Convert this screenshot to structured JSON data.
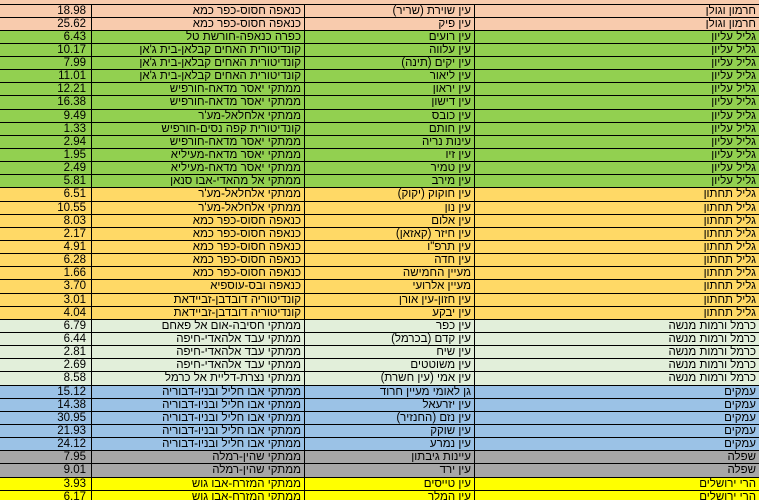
{
  "table": {
    "groups": [
      {
        "color": "#f8cbad",
        "rows": [
          [
            "חרמון וגולן",
            "עין שוירת (שריר)",
            "כנאפה חסוס-כפר כמא",
            "18.98"
          ],
          [
            "חרמון וגולן",
            "עין פיק",
            "כנאפה חסוס-כפר כמא",
            "25.62"
          ]
        ]
      },
      {
        "color": "#92d050",
        "rows": [
          [
            "גליל עליון",
            "עין רועים",
            "כפרה כנאפה-חורשת טל",
            "6.43"
          ],
          [
            "גליל עליון",
            "עין עלווה",
            "קונדיטורית האחים קבלאן-בית ג'אן",
            "10.17"
          ],
          [
            "גליל עליון",
            "עין יקים (תינה)",
            "קונדיטורית האחים קבלאן-בית ג'אן",
            "7.99"
          ],
          [
            "גליל עליון",
            "עין ליאור",
            "קונדיטורית האחים קבלאן-בית ג'אן",
            "11.01"
          ],
          [
            "גליל עליון",
            "עין יראון",
            "ממתקי יאסר מדאח-חורפיש",
            "12.21"
          ],
          [
            "גליל עליון",
            "עין דישון",
            "ממתקי יאסר מדאח-חורפיש",
            "16.38"
          ],
          [
            "גליל עליון",
            "עין כובס",
            "ממתקי אלחלאל-מע'ר",
            "9.49"
          ],
          [
            "גליל עליון",
            "עין חותם",
            "קונדיטורית קפה נסים-חורפיש",
            "1.33"
          ],
          [
            "גליל עליון",
            "עינות נריה",
            "ממתקי יאסר מדאח-חורפיש",
            "2.94"
          ],
          [
            "גליל עליון",
            "עין זיו",
            "ממתקי יאסר מדאח-מעיליא",
            "1.95"
          ],
          [
            "גליל עליון",
            "עין טמיר",
            "ממתקי יאסר מדאח-מעיליא",
            "2.49"
          ],
          [
            "גליל עליון",
            "עין מירב",
            "ממתקי אל מהאדי-אבו סנאן",
            "5.81"
          ]
        ]
      },
      {
        "color": "#ffd966",
        "rows": [
          [
            "גליל תחתון",
            "עין חוקוק (יקוק)",
            "ממתקי אלחלאל-מע'ר",
            "6.51"
          ],
          [
            "גליל תחתון",
            "עין נון",
            "ממתקי אלחלאל-מע'ר",
            "10.55"
          ],
          [
            "גליל תחתון",
            "עין אלום",
            "כנאפה חסוס-כפר כמא",
            "8.03"
          ],
          [
            "גליל תחתון",
            "עין חיזר (קאזאן)",
            "כנאפה חסוס-כפר כמא",
            "2.17"
          ],
          [
            "גליל תחתון",
            "עין תרפ\"ו",
            "כנאפה חסוס-כפר כמא",
            "4.91"
          ],
          [
            "גליל תחתון",
            "עין חדה",
            "כנאפה חסוס-כפר כמא",
            "6.28"
          ],
          [
            "גליל תחתון",
            "מעיין החמישה",
            "כנאפה חסוס-כפר כמא",
            "1.66"
          ],
          [
            "גליל תחתון",
            "מעיין אלרועי",
            "כנאפה ובס-עוספיא",
            "3.70"
          ],
          [
            "גליל תחתון",
            "עין חזון-עין אורן",
            "קונדיטוריה דובדבן-זביידאת",
            "3.01"
          ],
          [
            "גליל תחתון",
            "עין יבקע",
            "קונדיטוריה דובדבן-זביידאת",
            "4.04"
          ]
        ]
      },
      {
        "color": "#e2efda",
        "rows": [
          [
            "כרמל ורמות מנשה",
            "עין כפר",
            "ממתקי חסיבה-אום אל פאחם",
            "6.79"
          ],
          [
            "כרמל ורמות מנשה",
            "עין קדם (בכרמל)",
            "ממתקי עבד אלהאדי-חיפה",
            "6.44"
          ],
          [
            "כרמל ורמות מנשה",
            "עין שיח",
            "ממתקי עבד אלהאדי-חיפה",
            "2.81"
          ],
          [
            "כרמל ורמות מנשה",
            "עין משוטטים",
            "ממתקי עבד אלהאדי-חיפה",
            "2.69"
          ],
          [
            "כרמל ורמות מנשה",
            "עין אמי (עין חשרת)",
            "ממתקי נצרת-דליית אל כרמל",
            "8.58"
          ]
        ]
      },
      {
        "color": "#9bc2e6",
        "rows": [
          [
            "עמקים",
            "גן לאומי מעיין חרוד",
            "ממתקי אבו חליל ובניו-דבוריה",
            "15.12"
          ],
          [
            "עמקים",
            "עין יזרעאל",
            "ממתקי אבו חליל ובניו-דבוריה",
            "14.38"
          ],
          [
            "עמקים",
            "עין נזם (החנזיר)",
            "ממתקי אבו חליל ובניו-דבוריה",
            "30.95"
          ],
          [
            "עמקים",
            "עין שוקק",
            "ממתקי אבו חליל ובניו-דבוריה",
            "21.93"
          ],
          [
            "עמקים",
            "עין נמרע",
            "ממתקי אבו חליל ובניו-דבוריה",
            "24.12"
          ]
        ]
      },
      {
        "color": "#a6a6a6",
        "rows": [
          [
            "שפלה",
            "עיינות גיבתון",
            "ממתקי שהין-רמלה",
            "7.95"
          ],
          [
            "שפלה",
            "עין ירד",
            "ממתקי שהין-רמלה",
            "9.01"
          ]
        ]
      },
      {
        "color": "#ffff00",
        "rows": [
          [
            "הרי ירושלים",
            "עין טייסים",
            "ממתקי המזרח-אבו גוש",
            "3.93"
          ],
          [
            "הרי ירושלים",
            "עין המלך",
            "ממתקי המזרח-אבו גוש",
            "6.17"
          ]
        ]
      }
    ]
  }
}
